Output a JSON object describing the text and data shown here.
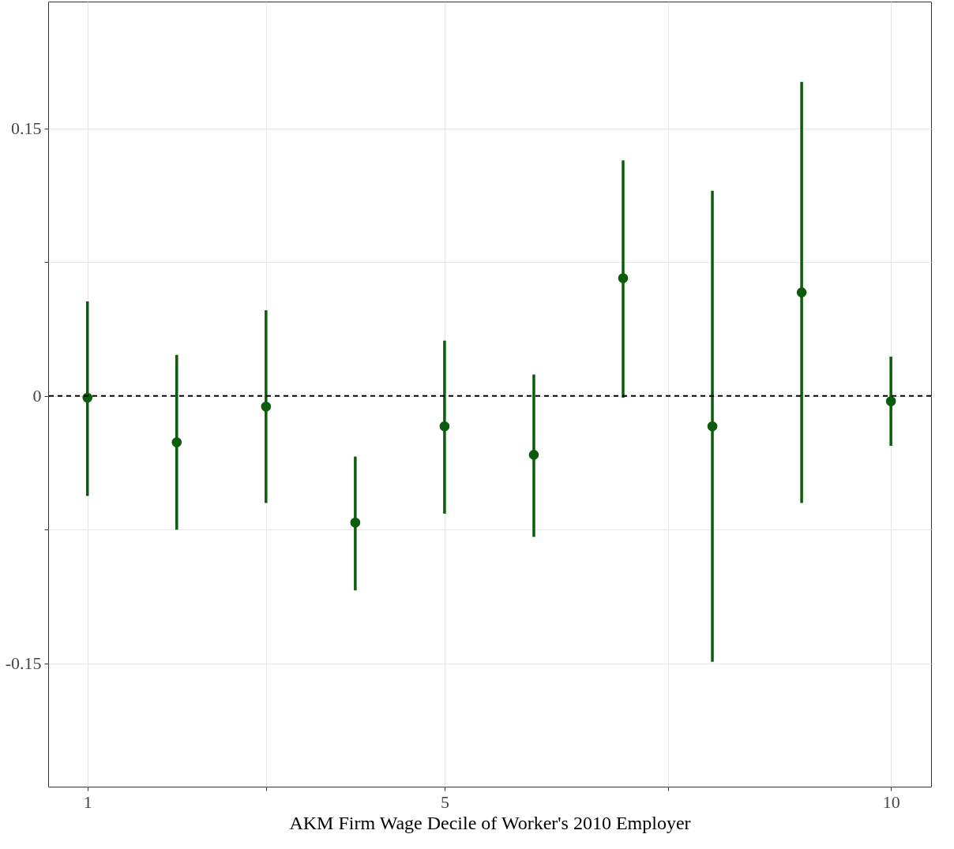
{
  "chart_data": {
    "type": "scatter",
    "xlabel": "AKM Firm Wage Decile of Worker's 2010 Employer",
    "x": [
      1,
      2,
      3,
      4,
      5,
      6,
      7,
      8,
      9,
      10
    ],
    "series": [
      {
        "color": "#0b5d0b",
        "values": [
          -0.001,
          -0.026,
          -0.006,
          -0.071,
          -0.017,
          -0.033,
          0.066,
          -0.017,
          0.058,
          -0.003
        ],
        "errors": [
          [
            -0.056,
            0.053
          ],
          [
            -0.075,
            0.023
          ],
          [
            -0.06,
            0.048
          ],
          [
            -0.109,
            -0.034
          ],
          [
            -0.066,
            0.031
          ],
          [
            -0.079,
            0.012
          ],
          [
            -0.001,
            0.132
          ],
          [
            -0.149,
            0.115
          ],
          [
            -0.06,
            0.176
          ],
          [
            -0.028,
            0.022
          ]
        ]
      }
    ],
    "xlim": [
      0.56,
      10.45
    ],
    "xticks": [
      1,
      {
        "value": 3,
        "label": null
      },
      5,
      {
        "value": 7.5,
        "label": null
      },
      10
    ],
    "ylim": [
      -0.219,
      0.221
    ],
    "yticks": [
      -0.15,
      {
        "value": -0.075,
        "label": null
      },
      0,
      {
        "value": 0.075,
        "label": null
      },
      0.15
    ],
    "ref_lines": [
      {
        "axis": "y",
        "value": 0,
        "color": "#000000",
        "line_style": "dashed"
      }
    ],
    "grid": true,
    "marker": "circle"
  }
}
